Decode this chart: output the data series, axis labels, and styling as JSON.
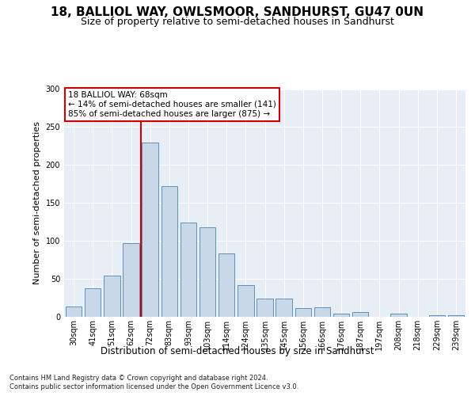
{
  "title1": "18, BALLIOL WAY, OWLSMOOR, SANDHURST, GU47 0UN",
  "title2": "Size of property relative to semi-detached houses in Sandhurst",
  "xlabel": "Distribution of semi-detached houses by size in Sandhurst",
  "ylabel": "Number of semi-detached properties",
  "categories": [
    "30sqm",
    "41sqm",
    "51sqm",
    "62sqm",
    "72sqm",
    "83sqm",
    "93sqm",
    "103sqm",
    "114sqm",
    "124sqm",
    "135sqm",
    "145sqm",
    "156sqm",
    "166sqm",
    "176sqm",
    "187sqm",
    "197sqm",
    "208sqm",
    "218sqm",
    "229sqm",
    "239sqm"
  ],
  "values": [
    14,
    38,
    54,
    97,
    230,
    172,
    124,
    118,
    84,
    42,
    24,
    24,
    11,
    13,
    4,
    6,
    0,
    4,
    0,
    2,
    2
  ],
  "bar_color": "#c8d8e8",
  "bar_edge_color": "#6090b8",
  "vline_index": 3.5,
  "vline_color": "#cc0000",
  "annotation_title": "18 BALLIOL WAY: 68sqm",
  "annotation_line1": "← 14% of semi-detached houses are smaller (141)",
  "annotation_line2": "85% of semi-detached houses are larger (875) →",
  "annotation_box_color": "#ffffff",
  "annotation_box_edge": "#cc0000",
  "ylim": [
    0,
    300
  ],
  "yticks": [
    0,
    50,
    100,
    150,
    200,
    250,
    300
  ],
  "footer1": "Contains HM Land Registry data © Crown copyright and database right 2024.",
  "footer2": "Contains public sector information licensed under the Open Government Licence v3.0.",
  "bg_color": "#ffffff",
  "plot_bg_color": "#e8eef5",
  "title1_fontsize": 11,
  "title2_fontsize": 9,
  "xlabel_fontsize": 8.5,
  "ylabel_fontsize": 8,
  "tick_fontsize": 7,
  "footer_fontsize": 6,
  "annot_fontsize": 7.5
}
